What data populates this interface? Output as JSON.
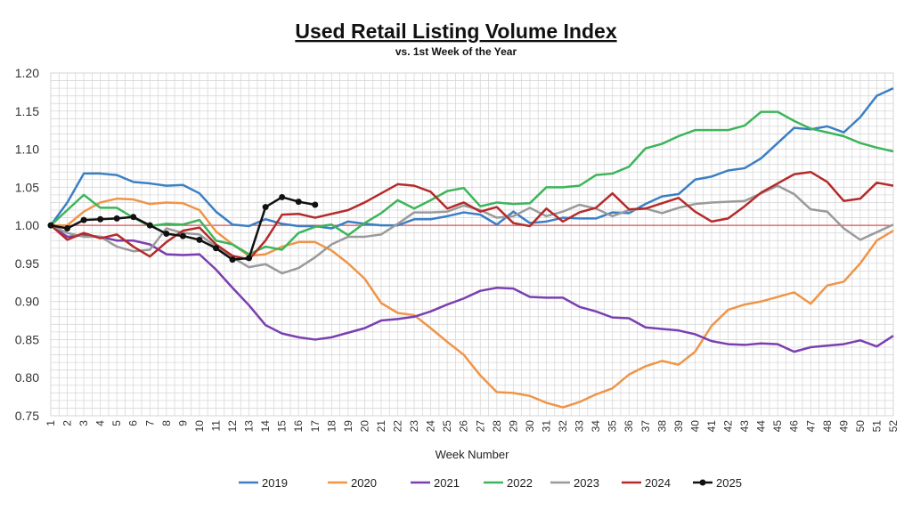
{
  "chart_data": {
    "type": "line",
    "title": "Used Retail Listing Volume Index",
    "subtitle": "vs. 1st Week of the Year",
    "xlabel": "Week Number",
    "ylabel": "",
    "ylim": [
      0.75,
      1.2
    ],
    "yticks": [
      "0.75",
      "0.80",
      "0.85",
      "0.90",
      "0.95",
      "1.00",
      "1.05",
      "1.10",
      "1.15",
      "1.20"
    ],
    "xlim": [
      1,
      52
    ],
    "grid": true,
    "reference_line": 1.0,
    "legend_position": "bottom",
    "series": [
      {
        "name": "2019",
        "color": "#3a7fc4",
        "markers": false,
        "values": [
          1.0,
          1.03,
          1.068,
          1.068,
          1.066,
          1.057,
          1.055,
          1.052,
          1.053,
          1.042,
          1.018,
          1.001,
          0.999,
          1.008,
          1.002,
          0.999,
          0.999,
          0.996,
          1.005,
          1.002,
          1.0,
          1.0,
          1.008,
          1.008,
          1.012,
          1.017,
          1.014,
          1.001,
          1.018,
          1.003,
          1.005,
          1.01,
          1.009,
          1.009,
          1.017,
          1.016,
          1.028,
          1.038,
          1.041,
          1.06,
          1.064,
          1.072,
          1.075,
          1.088,
          1.108,
          1.128,
          1.126,
          1.13,
          1.122,
          1.142,
          1.17,
          1.18
        ]
      },
      {
        "name": "2020",
        "color": "#ef9548",
        "markers": false,
        "values": [
          1.0,
          1.0,
          1.018,
          1.03,
          1.035,
          1.034,
          1.028,
          1.03,
          1.029,
          1.02,
          0.992,
          0.975,
          0.96,
          0.962,
          0.972,
          0.978,
          0.978,
          0.967,
          0.95,
          0.93,
          0.898,
          0.885,
          0.882,
          0.865,
          0.847,
          0.83,
          0.803,
          0.781,
          0.78,
          0.776,
          0.767,
          0.761,
          0.768,
          0.778,
          0.786,
          0.804,
          0.815,
          0.822,
          0.817,
          0.834,
          0.868,
          0.889,
          0.896,
          0.9,
          0.906,
          0.912,
          0.897,
          0.921,
          0.926,
          0.95,
          0.98,
          0.993
        ]
      },
      {
        "name": "2021",
        "color": "#7a3fb0",
        "markers": false,
        "values": [
          1.0,
          0.985,
          0.987,
          0.985,
          0.98,
          0.98,
          0.975,
          0.962,
          0.961,
          0.962,
          0.942,
          0.918,
          0.895,
          0.869,
          0.858,
          0.853,
          0.85,
          0.853,
          0.859,
          0.865,
          0.875,
          0.877,
          0.88,
          0.887,
          0.896,
          0.904,
          0.914,
          0.918,
          0.917,
          0.906,
          0.905,
          0.905,
          0.893,
          0.887,
          0.879,
          0.878,
          0.866,
          0.864,
          0.862,
          0.857,
          0.848,
          0.844,
          0.843,
          0.845,
          0.844,
          0.834,
          0.84,
          0.842,
          0.844,
          0.849,
          0.841,
          0.855
        ]
      },
      {
        "name": "2022",
        "color": "#3cb55a",
        "markers": false,
        "values": [
          1.0,
          1.02,
          1.04,
          1.023,
          1.023,
          1.01,
          0.999,
          1.002,
          1.001,
          1.007,
          0.98,
          0.975,
          0.962,
          0.972,
          0.968,
          0.99,
          0.998,
          1.001,
          0.987,
          1.003,
          1.016,
          1.033,
          1.022,
          1.033,
          1.045,
          1.049,
          1.025,
          1.03,
          1.028,
          1.029,
          1.05,
          1.05,
          1.052,
          1.066,
          1.068,
          1.077,
          1.101,
          1.107,
          1.117,
          1.125,
          1.125,
          1.125,
          1.131,
          1.149,
          1.149,
          1.137,
          1.127,
          1.122,
          1.117,
          1.108,
          1.102,
          1.097
        ]
      },
      {
        "name": "2023",
        "color": "#9a9a9a",
        "markers": false,
        "values": [
          1.0,
          0.99,
          0.985,
          0.985,
          0.972,
          0.966,
          0.968,
          0.996,
          0.99,
          0.988,
          0.972,
          0.958,
          0.945,
          0.949,
          0.937,
          0.944,
          0.958,
          0.975,
          0.985,
          0.985,
          0.988,
          1.002,
          1.017,
          1.017,
          1.018,
          1.026,
          1.02,
          1.01,
          1.012,
          1.023,
          1.012,
          1.018,
          1.027,
          1.022,
          1.012,
          1.02,
          1.022,
          1.016,
          1.023,
          1.028,
          1.03,
          1.031,
          1.032,
          1.042,
          1.052,
          1.041,
          1.021,
          1.018,
          0.996,
          0.981,
          0.991,
          1.001
        ]
      },
      {
        "name": "2024",
        "color": "#b52a2a",
        "markers": false,
        "values": [
          1.0,
          0.981,
          0.99,
          0.983,
          0.988,
          0.972,
          0.959,
          0.978,
          0.993,
          0.997,
          0.975,
          0.96,
          0.955,
          0.98,
          1.014,
          1.015,
          1.01,
          1.015,
          1.02,
          1.03,
          1.042,
          1.054,
          1.052,
          1.044,
          1.022,
          1.03,
          1.018,
          1.024,
          1.003,
          0.999,
          1.022,
          1.005,
          1.017,
          1.023,
          1.042,
          1.021,
          1.022,
          1.029,
          1.036,
          1.018,
          1.005,
          1.009,
          1.025,
          1.043,
          1.055,
          1.067,
          1.07,
          1.057,
          1.032,
          1.035,
          1.056,
          1.052
        ]
      },
      {
        "name": "2025",
        "color": "#111111",
        "markers": true,
        "values": [
          1.0,
          0.996,
          1.007,
          1.008,
          1.009,
          1.011,
          1.0,
          0.989,
          0.986,
          0.981,
          0.97,
          0.955,
          0.957,
          1.024,
          1.037,
          1.031,
          1.027
        ]
      }
    ]
  }
}
